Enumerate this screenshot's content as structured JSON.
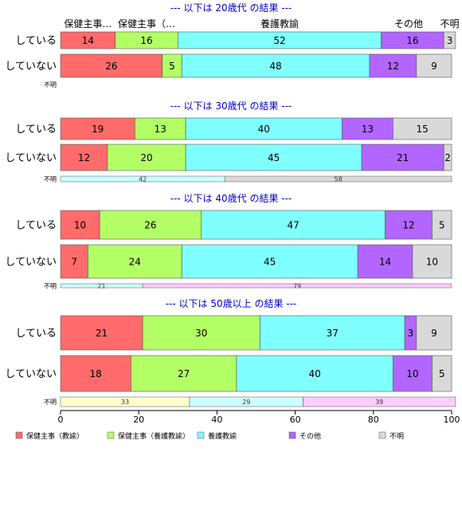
{
  "colors": {
    "kyoyu": "#ff6b6b",
    "yogo_kyoyu": "#b3ff66",
    "yogo": "#80ffff",
    "other": "#b266ff",
    "unknown": "#d9d9d9",
    "unknown_yes": "#ffffcc",
    "unknown_kyoyu": "#ff9999",
    "unknown_yogo": "#ccffff",
    "unknown_other": "#ffccff",
    "title": "#0000cc"
  },
  "chart_data": {
    "type": "bar",
    "orientation": "horizontal",
    "stacked": true,
    "xlim": [
      0,
      100
    ],
    "xticks": [
      "0",
      "20",
      "40",
      "60",
      "80",
      "100"
    ],
    "legend_position": "bottom",
    "legend": [
      "保健主事（教諭）",
      "保健主事（養護教諭）",
      "養護教諭",
      "その他",
      "不明"
    ],
    "column_headers": [
      {
        "label": "保健主事…",
        "at": 7
      },
      {
        "label": "保健主事（…",
        "at": 22
      },
      {
        "label": "養護教諭",
        "at": 56
      },
      {
        "label": "その他",
        "at": 89
      },
      {
        "label": "不明",
        "at": 99.5
      }
    ],
    "groups": [
      {
        "title": "--- 以下は 20歳代 の結果 ---",
        "rows": [
          {
            "label": "している",
            "values": [
              14,
              16,
              52,
              16,
              3
            ]
          },
          {
            "label": "していない",
            "values": [
              26,
              5,
              48,
              12,
              9
            ]
          }
        ],
        "unknown_label": "不明",
        "unknown_segments": []
      },
      {
        "title": "--- 以下は 30歳代 の結果 ---",
        "rows": [
          {
            "label": "している",
            "values": [
              19,
              13,
              40,
              13,
              15
            ]
          },
          {
            "label": "していない",
            "values": [
              12,
              20,
              45,
              21,
              2
            ]
          }
        ],
        "unknown_label": "不明",
        "unknown_segments": [
          {
            "value": 42,
            "color": "unknown_yogo"
          },
          {
            "value": 58,
            "color": "unknown"
          }
        ]
      },
      {
        "title": "--- 以下は 40歳代 の結果 ---",
        "rows": [
          {
            "label": "している",
            "values": [
              10,
              26,
              47,
              12,
              5
            ]
          },
          {
            "label": "していない",
            "values": [
              7,
              24,
              45,
              14,
              10
            ]
          }
        ],
        "unknown_label": "不明",
        "unknown_segments": [
          {
            "value": 21,
            "color": "unknown_yogo"
          },
          {
            "value": 79,
            "color": "unknown_other"
          }
        ]
      },
      {
        "title": "--- 以下は 50歳以上 の結果 ---",
        "rows": [
          {
            "label": "している",
            "values": [
              21,
              30,
              37,
              3,
              9
            ]
          },
          {
            "label": "していない",
            "values": [
              18,
              27,
              40,
              10,
              5
            ]
          }
        ],
        "unknown_label": "不明",
        "unknown_segments": [
          {
            "value": 33,
            "color": "unknown_yes"
          },
          {
            "value": 29,
            "color": "unknown_yogo"
          },
          {
            "value": 39,
            "color": "unknown_other"
          }
        ]
      }
    ]
  }
}
